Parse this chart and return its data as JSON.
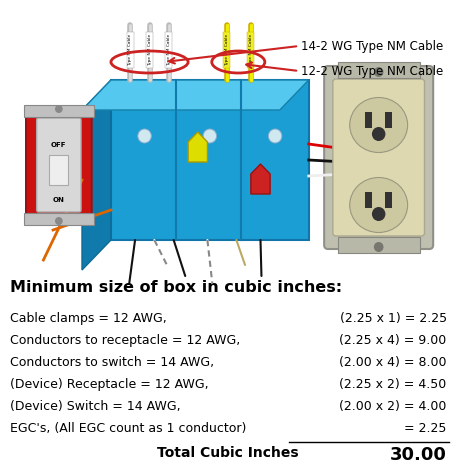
{
  "title": "Minimum size of box in cubic inches:",
  "rows": [
    {
      "label": "Cable clamps = 12 AWG,",
      "calc": "(2.25 x 1) = 2.25"
    },
    {
      "label": "Conductors to receptacle = 12 AWG,",
      "calc": "(2.25 x 4) = 9.00"
    },
    {
      "label": "Conductors to switch = 14 AWG,",
      "calc": "(2.00 x 4) = 8.00"
    },
    {
      "label": "(Device) Receptacle = 12 AWG,",
      "calc": "(2.25 x 2) = 4.50"
    },
    {
      "label": "(Device) Switch = 14 AWG,",
      "calc": "(2.00 x 2) = 4.00"
    },
    {
      "label": "EGC's, (All EGC count as 1 conductor)",
      "calc": "= 2.25",
      "underline": true
    }
  ],
  "total_label": "Total Cubic Inches",
  "total_value": "30.00",
  "cable_label_1": "14-2 WG Type NM Cable",
  "cable_label_2": "12-2 WG Type NM Cable",
  "bg_color": "#ffffff",
  "text_color": "#000000",
  "title_color": "#000000",
  "box_color": "#1b9ed4",
  "label_font_size": 9.0,
  "title_font_size": 11.5
}
